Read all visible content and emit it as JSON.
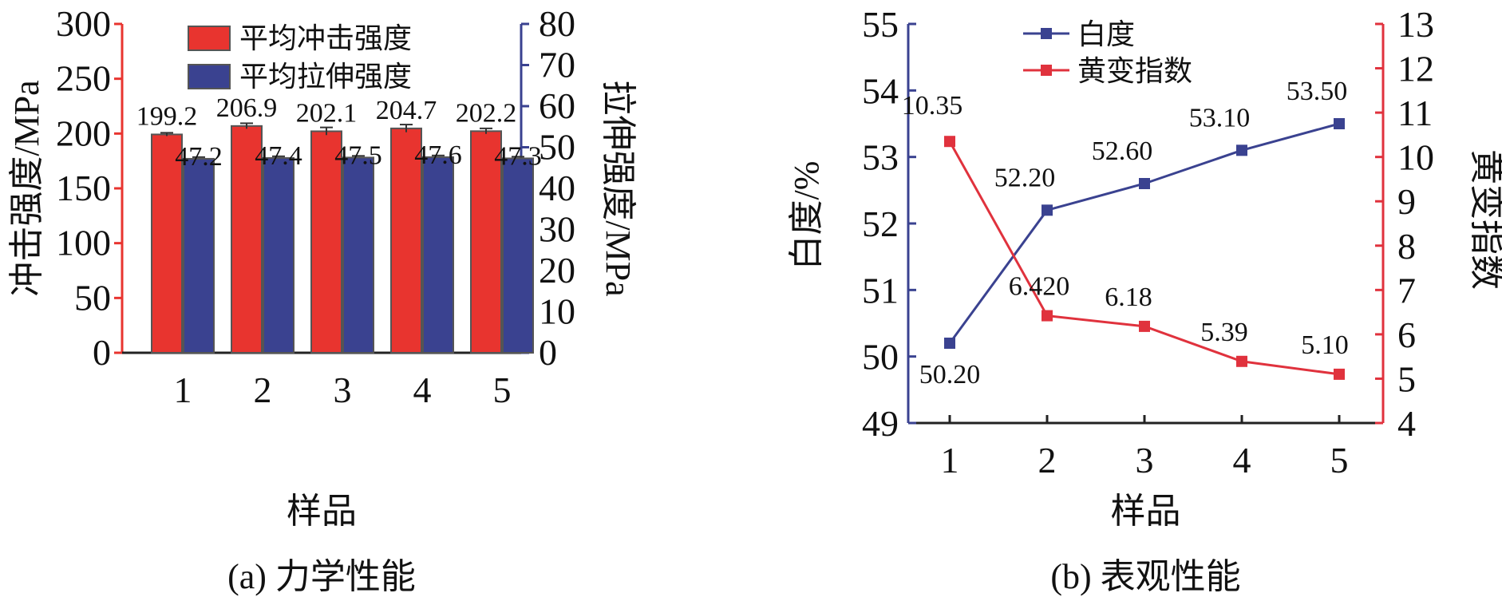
{
  "chart_data": [
    {
      "type": "bar",
      "caption": "(a) 力学性能",
      "categories": [
        "1",
        "2",
        "3",
        "4",
        "5"
      ],
      "xlabel": "样品",
      "ylabel_left": "冲击强度/MPa",
      "ylabel_right": "拉伸强度/MPa",
      "ylim_left": [
        0,
        300
      ],
      "ylim_right": [
        0,
        80
      ],
      "yticks_left": [
        "0",
        "50",
        "100",
        "150",
        "200",
        "250",
        "300"
      ],
      "yticks_right": [
        "0",
        "10",
        "20",
        "30",
        "40",
        "50",
        "60",
        "70",
        "80"
      ],
      "series": [
        {
          "name": "平均冲击强度",
          "axis": "left",
          "color": "#e8342f",
          "values": [
            199.2,
            206.9,
            202.1,
            204.7,
            202.2
          ],
          "labels": [
            "199.2",
            "206.9",
            "202.1",
            "204.7",
            "202.2"
          ],
          "errors": [
            1.5,
            2.5,
            3.5,
            3.5,
            2.5
          ]
        },
        {
          "name": "平均拉伸强度",
          "axis": "right",
          "color": "#3a4290",
          "values": [
            47.2,
            47.4,
            47.5,
            47.6,
            47.3
          ],
          "labels": [
            "47.2",
            "47.4",
            "47.5",
            "47.6",
            "47.3"
          ],
          "errors": [
            0.4,
            0.4,
            0.4,
            0.4,
            0.4
          ]
        }
      ],
      "left_axis_color": "#e8342f",
      "right_axis_color": "#3a4290",
      "legend_position": "top-left"
    },
    {
      "type": "line",
      "caption": "(b) 表观性能",
      "x": [
        "1",
        "2",
        "3",
        "4",
        "5"
      ],
      "xlabel": "样品",
      "ylabel_left": "白度/%",
      "ylabel_right": "黄变指数",
      "ylim_left": [
        49,
        55
      ],
      "ylim_right": [
        4,
        13
      ],
      "yticks_left": [
        "49",
        "50",
        "51",
        "52",
        "53",
        "54",
        "55"
      ],
      "yticks_right": [
        "4",
        "5",
        "6",
        "7",
        "8",
        "9",
        "10",
        "11",
        "12",
        "13"
      ],
      "series": [
        {
          "name": "白度",
          "axis": "left",
          "color": "#3a4290",
          "values": [
            50.2,
            52.2,
            52.6,
            53.1,
            53.5
          ],
          "labels": [
            "50.20",
            "52.20",
            "52.60",
            "53.10",
            "53.50"
          ]
        },
        {
          "name": "黄变指数",
          "axis": "right",
          "color": "#e0323d",
          "values": [
            10.35,
            6.42,
            6.18,
            5.39,
            5.1
          ],
          "labels": [
            "10.35",
            "6.420",
            "6.18",
            "5.39",
            "5.10"
          ]
        }
      ],
      "left_axis_color": "#3a4290",
      "right_axis_color": "#e0323d",
      "legend_position": "top-center"
    }
  ]
}
